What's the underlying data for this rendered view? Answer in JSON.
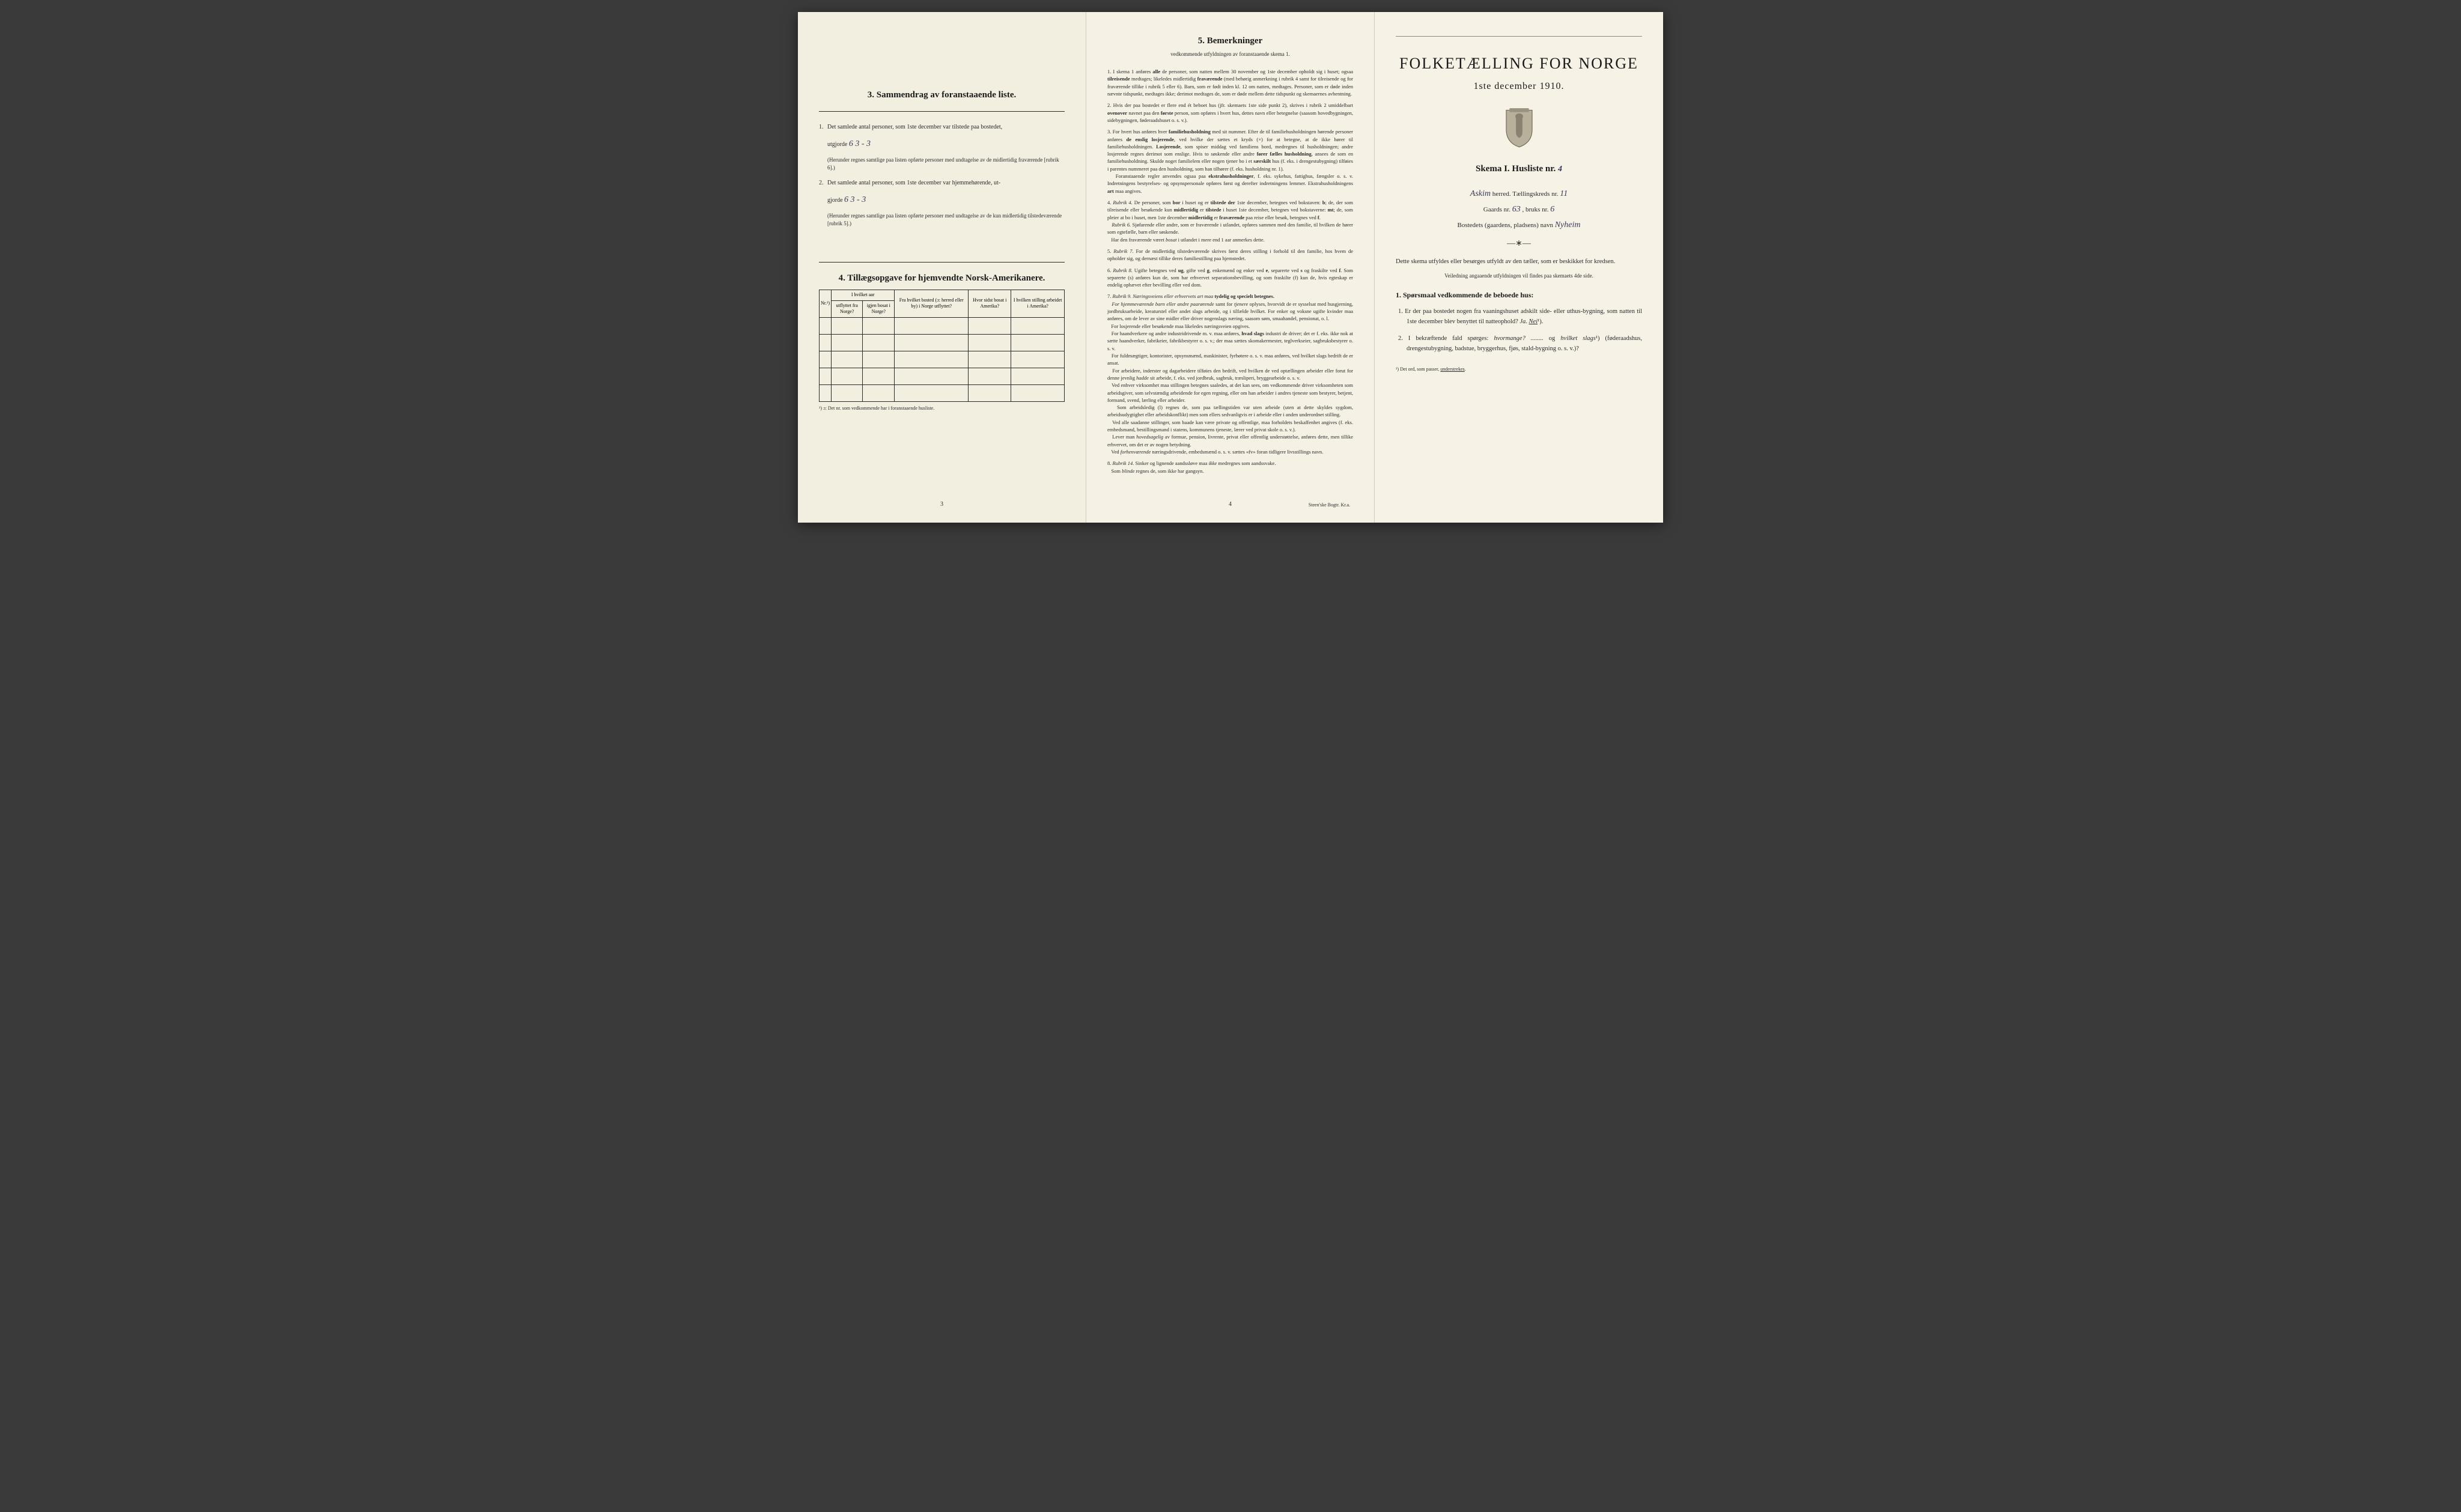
{
  "page_left": {
    "section3_heading": "3.   Sammendrag av foranstaaende liste.",
    "item1_text": "Det samlede antal personer, som 1ste december var tilstede paa bostedet,",
    "item1_prefix": "utgjorde",
    "item1_hand": "6     3 - 3",
    "item1_paren": "(Herunder regnes samtlige paa listen opførte personer med undtagelse av de midlertidig fraværende [rubrik 6].)",
    "item2_text": "Det samlede antal personer, som 1ste december var hjemmehørende, ut-",
    "item2_prefix": "gjorde",
    "item2_hand": "6     3 - 3",
    "item2_paren": "(Herunder regnes samtlige paa listen opførte personer med undtagelse av de kun midlertidig tilstedeværende [rubrik 5].)",
    "section4_heading": "4.   Tillægsopgave for hjemvendte Norsk-Amerikanere.",
    "table": {
      "header_group": "I hvilket aar",
      "col_nr": "Nr.¹)",
      "col_utflyttet": "utflyttet fra Norge?",
      "col_igjen": "igjen bosat i Norge?",
      "col_bosted": "Fra hvilket bosted (ɔ: herred eller by) i Norge utflyttet?",
      "col_sidst": "Hvor sidst bosat i Amerika?",
      "col_stilling": "I hvilken stilling arbeidet i Amerika?",
      "rows": 5
    },
    "table_footnote": "¹) ɔ: Det nr. som vedkommende har i foranstaaende husliste.",
    "page_num": "3"
  },
  "page_middle": {
    "heading": "5.   Bemerkninger",
    "subheading": "vedkommende utfyldningen av foranstaaende skema 1.",
    "items": [
      "I skema 1 anføres <strong>alle</strong> de personer, som natten mellem 30 november og 1ste december opholdt sig i huset; ogsaa <strong>tilreisende</strong> medtages; likeledes midlertidig <strong>fraværende</strong> (med behørig anmerkning i rubrik 4 samt for tilreisende og for fraværende tillike i rubrik 5 eller 6). Barn, som er født inden kl. 12 om natten, medtages. Personer, som er døde inden nævnte tidspunkt, medtages ikke; derimot medtages de, som er døde mellem dette tidspunkt og skemaernes avhentning.",
      "Hvis der paa bostedet er flere end ét beboet hus (jfr. skemaets 1ste side punkt 2), skrives i rubrik 2 umiddelbart <strong>ovenover</strong> navnet paa den <strong>første</strong> person, som opføres i hvert hus, dettes navn eller betegnelse (saasom hovedbygningen, sidebygningen, føderaadshuset o. s. v.).",
      "For hvert hus anføres hver <strong>familiehusholdning</strong> med sit nummer. Efter de til familiehusholdningen hørende personer anføres <strong>de enslig losjerende</strong>, ved hvilke der sættes et kryds (×) for at betegne, at de ikke hører til familiehusholdningen. <strong>Losjerende</strong>, som spiser middag ved familiens bord, medregnes til husholdningen; andre losjerende regnes derimot som enslige. Hvis to søskende eller andre <strong>fører fælles husholdning</strong>, ansees de som en familiehusholdning. Skulde noget familielem eller nogen tjener bo i et <strong>særskilt</strong> hus (f. eks. i drengestubygning) tilføies i parentes nummeret paa den husholdning, som han tilhører (f. eks. husholdning nr. 1).<br>&nbsp;&nbsp;&nbsp;Foranstaaende regler anvendes ogsaa paa <strong>ekstrahusholdninger</strong>, f. eks. sykehus, fattighus, fængsler o. s. v. Indretningens bestyrelses- og opsynspersonale opføres først og derefter indretningens lemmer. Ekstrahusholdningens <strong>art</strong> maa angives.",
      "<em>Rubrik 4.</em> De personer, som <strong>bor</strong> i huset og er <strong>tilstede der</strong> 1ste december, betegnes ved bokstaven: <strong>b</strong>; de, der som tilreisende eller besøkende kun <strong>midlertidig</strong> er <strong>tilstede</strong> i huset 1ste december, betegnes ved bokstaverne: <strong>mt</strong>; de, som pleier at bo i huset, men 1ste december <strong>midlertidig</strong> er <strong>fraværende</strong> paa reise eller besøk, betegnes ved <strong>f</strong>.<br>&nbsp;&nbsp;&nbsp;<em>Rubrik 6.</em> Sjøfarende eller andre, som er fraværende i utlandet, opføres sammen med den familie, til hvilken de hører som egtefælle, barn eller søskende.<br>&nbsp;&nbsp;&nbsp;Har den fraværende været <em>bosat</em> i utlandet i mere end 1 aar anmerkes dette.",
      "<em>Rubrik 7.</em> For de midlertidig tilstedeværende skrives først deres stilling i forhold til den familie, hos hvem de opholder sig, og dernæst tillike deres familiestilling paa hjemstedet.",
      "<em>Rubrik 8.</em> Ugifte betegnes ved <strong>ug</strong>, gifte ved <strong>g</strong>, enkemænd og enker ved <strong>e</strong>, separerte ved <strong>s</strong> og fraskilte ved <strong>f</strong>. Som separerte (s) anføres kun de, som har erhvervet separationsbevilling, og som fraskilte (f) kun de, hvis egteskap er endelig ophævet efter bevilling eller ved dom.",
      "<em>Rubrik 9.</em> <em>Næringsveiens eller erhvervets art maa</em> <strong>tydelig og specielt betegnes.</strong><br>&nbsp;&nbsp;&nbsp;<em>For hjemmeværende barn eller andre paarørende</em> samt for <em>tjenere</em> oplyses, hvorvidt de er sysselsat med husgjerning, jordbruksarbeide, kreaturstel eller andet slags arbeide, og i tilfælde hvilket. For enker og voksne ugifte kvinder maa anføres, om de lever av sine midler eller driver nogenslags næring, saasom søm, smaahandel, pensionat, o. l.<br>&nbsp;&nbsp;&nbsp;For losjerende eller besøkende maa likeledes næringsveien opgives.<br>&nbsp;&nbsp;&nbsp;For haandverkere og andre industridrivende m. v. maa anføres, <strong>hvad slags</strong> industri de driver; det er f. eks. ikke nok at sætte haandverker, fabrikeier, fabrikbestyrer o. s. v.; der maa sættes skomakermester, teglverkseier, sagbruksbestyrer o. s. v.<br>&nbsp;&nbsp;&nbsp;For fuldmægtiger, kontorister, opsynsmænd, maskinister, fyrbøtere o. s. v. maa anføres, ved hvilket slags bedrift de er ansat.<br>&nbsp;&nbsp;&nbsp;For arbeidere, inderster og dagarbeidere tilføies den bedrift, ved hvilken de ved optællingen arbeider eller forut for denne jevnlig <em>hadde</em> sit arbeide, f. eks. ved jordbruk, sagbruk, træsliperi, bryggearbeide o. s. v.<br>&nbsp;&nbsp;&nbsp;Ved enhver virksomhet maa stillingen betegnes saaledes, at det kan sees, om vedkommende driver virksomheten som arbeidsgiver, som selvstændig arbeidende for egen regning, eller om han arbeider i andres tjeneste som bestyrer, betjent, formand, svend, lærling eller arbeider.<br>&nbsp;&nbsp;&nbsp;Som arbeidsledig (l) regnes de, som paa tællingstiden var uten arbeide (uten at dette skyldes sygdom, arbeidsudygtighet eller arbeidskonflikt) men som ellers sedvanligvis er i arbeide eller i anden underordnet stilling.<br>&nbsp;&nbsp;&nbsp;Ved alle saadanne stillinger, som baade kan være private og offentlige, maa forholdets beskaffenhet angives (f. eks. embedsmand, bestillingsmand i statens, kommunens tjeneste, lærer ved privat skole o. s. v.).<br>&nbsp;&nbsp;&nbsp;Lever man <em>hovedsagelig</em> av formue, pension, livrente, privat eller offentlig understøttelse, anføres dette, men tillike erhvervet, om det er av nogen betydning.<br>&nbsp;&nbsp;&nbsp;Ved <em>forhenværende</em> næringsdrivende, embedsmænd o. s. v. sættes «fv» foran tidligere livsstillings navn.",
      "<em>Rubrik 14.</em> Sinker og lignende aandssløve maa <em>ikke</em> medregnes som aandssvake.<br>&nbsp;&nbsp;&nbsp;Som <em>blinde</em> regnes de, som ikke har gangsyn."
    ],
    "page_num": "4",
    "printer": "Steen'ske Bogtr. Kr.a."
  },
  "page_right": {
    "main_title": "FOLKETÆLLING FOR NORGE",
    "date": "1ste december 1910.",
    "skema": "Skema I.   Husliste nr.",
    "skema_hand": "4",
    "line_herred_hand": "Askim",
    "line_herred_label": "herred.  Tællingskreds nr.",
    "line_kreds_hand": "11",
    "line_gaard_label": "Gaards nr.",
    "line_gaard_hand": "63",
    "line_bruks_label": ", bruks nr.",
    "line_bruks_hand": "6",
    "line_bosted_label": "Bostedets (gaardens, pladsens) navn",
    "line_bosted_hand": "Nyheim",
    "instruction_main": "Dette skema utfyldes eller besørges utfyldt av den tæller, som er beskikket for kredsen.",
    "instruction_small": "Veiledning angaaende utfyldningen vil findes paa skemaets 4de side.",
    "q_heading": "1. Spørsmaal vedkommende de beboede hus:",
    "q1": "1. Er der paa bostedet nogen fra vaaningshuset adskilt side- eller uthus-bygning, som natten til 1ste december blev benyttet til natteophold?   <em>Ja.  <u>Nei</u></em>¹).",
    "q2": "2. I bekræftende fald spørges: <em>hvormange? ........</em> og <em>hvilket slags</em>¹) (føderaadshus, drengestubygning, badstue, bryggerhus, fjøs, stald-bygning o. s. v.)?",
    "footnote": "¹) Det ord, som passer, <u>understrekes</u>."
  }
}
